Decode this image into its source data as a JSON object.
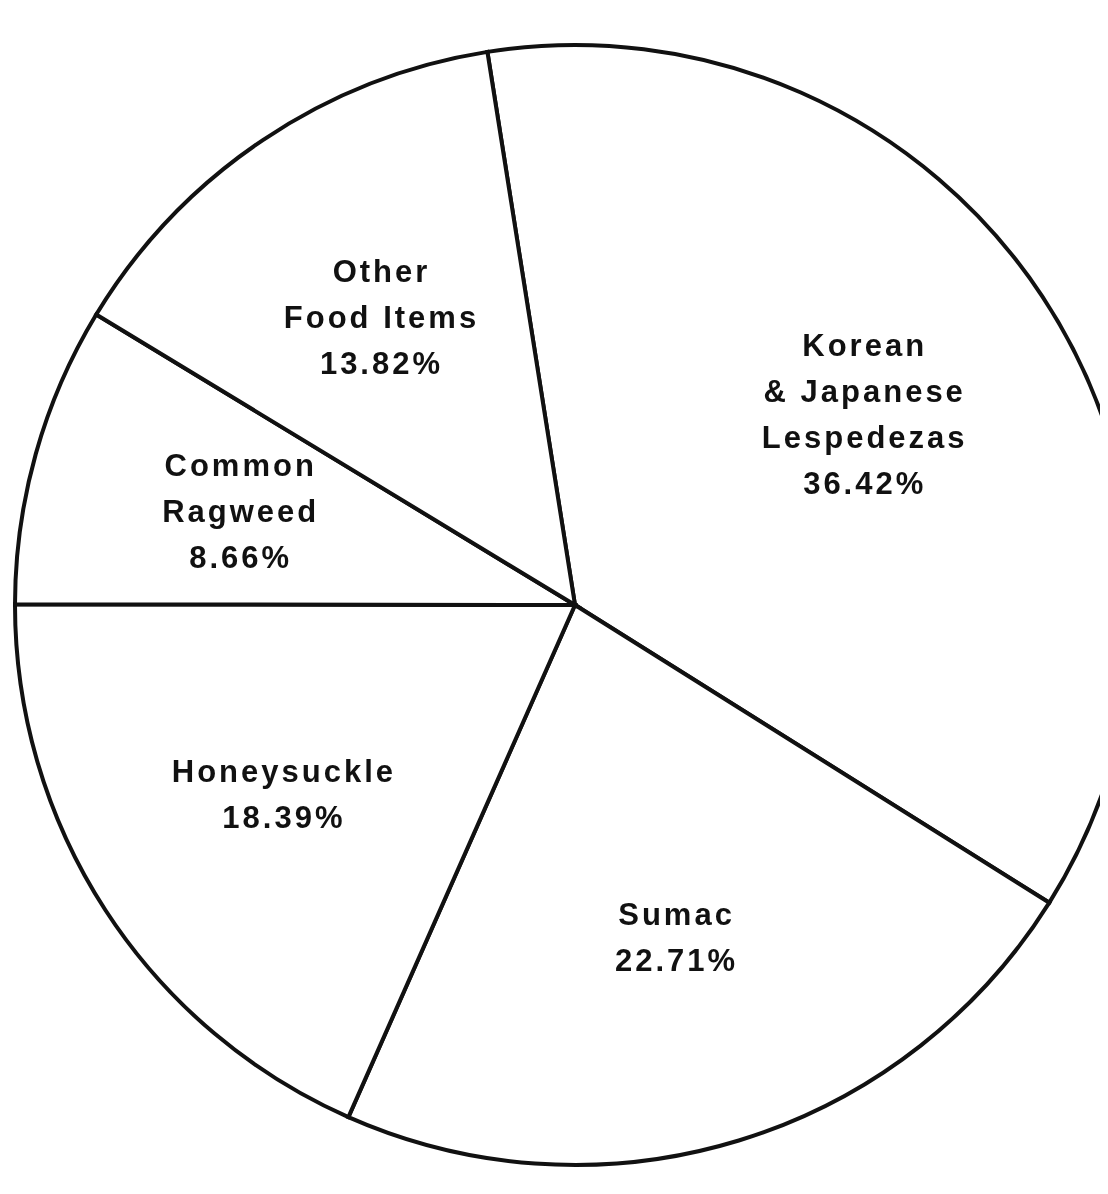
{
  "chart_data": {
    "type": "pie",
    "categories": [
      "Korean & Japanese Lespedezas",
      "Sumac",
      "Honeysuckle",
      "Common Ragweed",
      "Other Food Items"
    ],
    "values": [
      36.42,
      22.71,
      18.39,
      8.66,
      13.82
    ],
    "value_labels": [
      "36.42%",
      "22.71%",
      "18.39%",
      "8.66%",
      "13.82%"
    ],
    "colors": [
      "#ffffff",
      "#ffffff",
      "#ffffff",
      "#ffffff",
      "#ffffff"
    ]
  }
}
